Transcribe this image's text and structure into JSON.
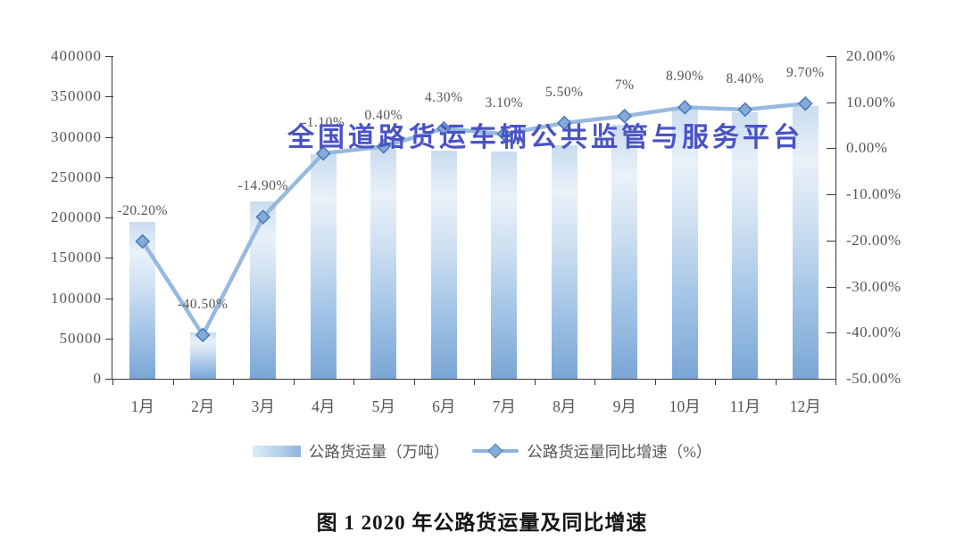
{
  "watermark": {
    "text": "全国道路货运车辆公共监管与服务平台",
    "color": "#4a53c5"
  },
  "caption": "图 1  2020 年公路货运量及同比增速",
  "legend": [
    {
      "type": "bar",
      "label": "公路货运量（万吨）"
    },
    {
      "type": "line",
      "label": "公路货运量同比增速（%）"
    }
  ],
  "colors": {
    "line": "#8fb3dc",
    "marker_fill": "#84abd9",
    "marker_stroke": "#4a7cb8",
    "bar_top": "#e9f1f9",
    "bar_bottom": "#7aa6d5",
    "axis_text": "#555555"
  },
  "chart_data": {
    "type": "combo",
    "title": "图 1 2020 年公路货运量及同比增速",
    "categories": [
      "1月",
      "2月",
      "3月",
      "4月",
      "5月",
      "6月",
      "7月",
      "8月",
      "9月",
      "10月",
      "11月",
      "12月"
    ],
    "series": [
      {
        "name": "公路货运量（万吨）",
        "type": "bar",
        "axis": "left",
        "values": [
          195000,
          57000,
          220000,
          278000,
          285000,
          283000,
          282000,
          290000,
          315000,
          335000,
          330000,
          338000
        ]
      },
      {
        "name": "公路货运量同比增速（%）",
        "type": "line",
        "axis": "right",
        "values": [
          -20.2,
          -40.5,
          -14.9,
          -1.1,
          0.4,
          4.3,
          3.1,
          5.5,
          7,
          8.9,
          8.4,
          9.7
        ],
        "labels": [
          "-20.20%",
          "-40.50%",
          "-14.90%",
          "-1.10%",
          "0.40%",
          "4.30%",
          "3.10%",
          "5.50%",
          "7%",
          "8.90%",
          "8.40%",
          "9.70%"
        ],
        "note": "4月 label hidden behind watermark in source image"
      }
    ],
    "left_axis": {
      "min": 0,
      "max": 400000,
      "step": 50000,
      "ticks": [
        "400000",
        "350000",
        "300000",
        "250000",
        "200000",
        "150000",
        "100000",
        "50000",
        "0"
      ]
    },
    "right_axis": {
      "min": -50,
      "max": 20,
      "step": 10,
      "ticks": [
        "20.00%",
        "10.00%",
        "0.00%",
        "-10.00%",
        "-20.00%",
        "-30.00%",
        "-40.00%",
        "-50.00%"
      ]
    },
    "grid": false,
    "legend_position": "bottom"
  }
}
